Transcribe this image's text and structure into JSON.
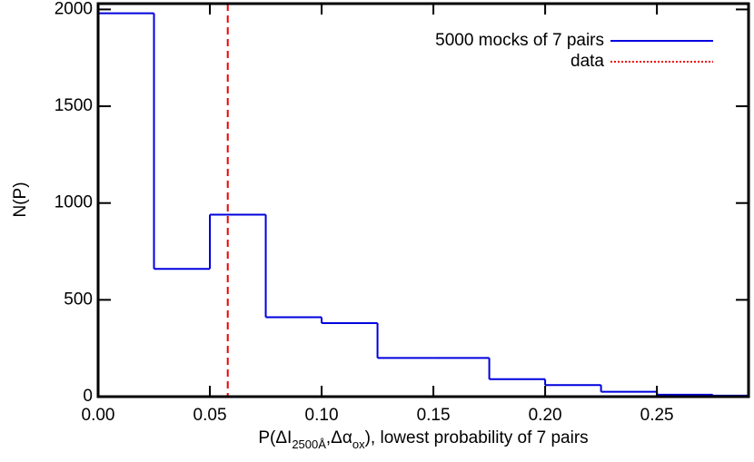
{
  "chart_data": {
    "type": "histogram",
    "x_label": [
      "P(ΔI",
      "2500Å",
      ",Δα",
      "ox",
      "), lowest probability of 7 pairs"
    ],
    "y_label": "N(P)",
    "bins": [
      0,
      0.025,
      0.05,
      0.075,
      0.1,
      0.125,
      0.15,
      0.175,
      0.2,
      0.225,
      0.25,
      0.275,
      0.3
    ],
    "series": [
      {
        "name": "5000 mocks of 7 pairs",
        "color": "#0000dd",
        "values": [
          1980,
          660,
          940,
          410,
          380,
          200,
          200,
          90,
          60,
          25,
          10,
          5
        ]
      }
    ],
    "reference_lines": [
      {
        "name": "data",
        "color": "#ee0000",
        "x": 0.058
      }
    ],
    "xlim": [
      0,
      0.291
    ],
    "ylim": [
      0,
      2030
    ],
    "xticks": [
      {
        "value": 0,
        "label": "0.00"
      },
      {
        "value": 0.05,
        "label": "0.05"
      },
      {
        "value": 0.1,
        "label": "0.10"
      },
      {
        "value": 0.15,
        "label": "0.15"
      },
      {
        "value": 0.2,
        "label": "0.20"
      },
      {
        "value": 0.25,
        "label": "0.25"
      }
    ],
    "yticks": [
      0,
      500,
      1000,
      1500,
      2000
    ]
  }
}
